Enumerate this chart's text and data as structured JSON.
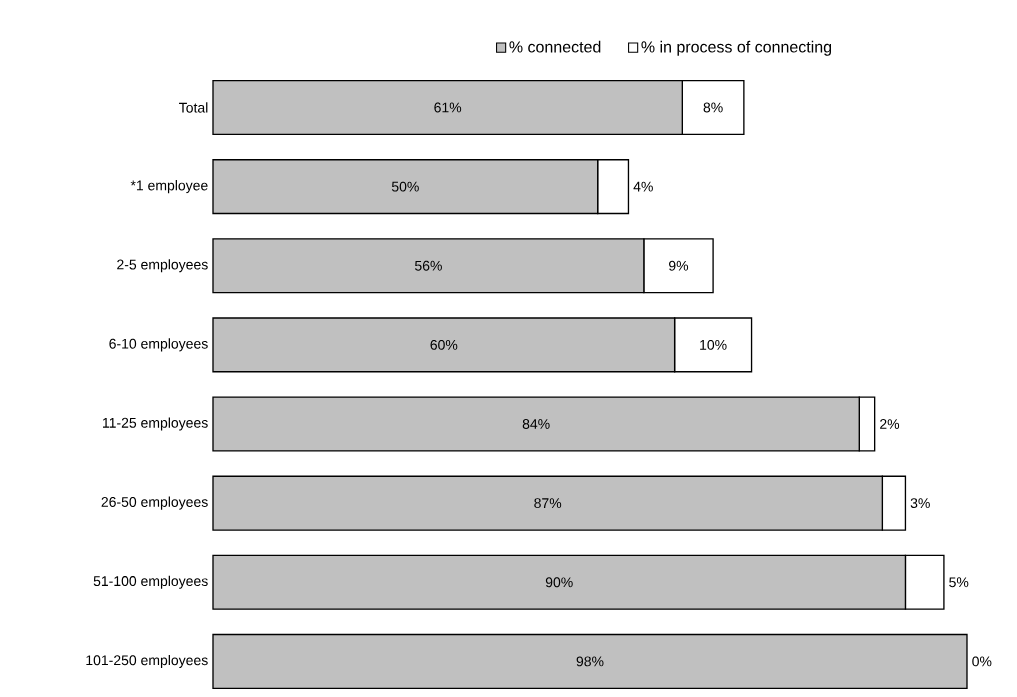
{
  "chart_data": {
    "type": "bar",
    "orientation": "horizontal",
    "stacked": true,
    "legend": "top",
    "categories": [
      "Total",
      "*1 employee",
      "2-5 employees",
      "6-10 employees",
      "11-25 employees",
      "26-50 employees",
      "51-100 employees",
      "101-250 employees"
    ],
    "series": [
      {
        "name": "% connected",
        "color": "#c0c0c0",
        "values": [
          61,
          50,
          56,
          60,
          84,
          87,
          90,
          98
        ],
        "value_labels": [
          "61%",
          "50%",
          "56%",
          "60%",
          "84%",
          "87%",
          "90%",
          "98%"
        ]
      },
      {
        "name": "% in process of connecting",
        "color": "#ffffff",
        "values": [
          8,
          4,
          9,
          10,
          2,
          3,
          5,
          0
        ],
        "value_labels": [
          "8%",
          "4%",
          "9%",
          "10%",
          "2%",
          "3%",
          "5%",
          "0%"
        ]
      }
    ]
  }
}
